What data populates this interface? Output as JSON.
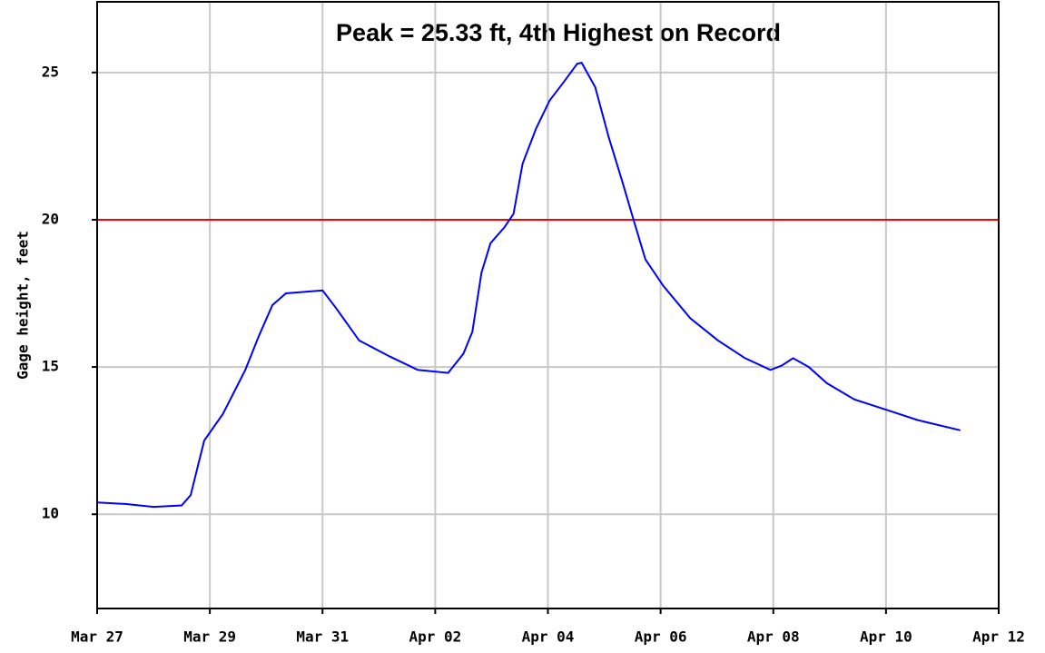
{
  "chart_data": {
    "type": "line",
    "title": "Peak = 25.33 ft, 4th Highest on Record",
    "y_label": "Gage height, feet",
    "x": [
      0,
      0.5,
      1.0,
      1.5,
      1.66,
      1.9,
      2.23,
      2.63,
      2.87,
      3.11,
      3.35,
      4.0,
      4.24,
      4.65,
      5.2,
      5.69,
      6.23,
      6.5,
      6.66,
      6.82,
      6.98,
      7.23,
      7.39,
      7.55,
      7.79,
      8.03,
      8.27,
      8.52,
      8.6,
      8.84,
      9.08,
      9.32,
      9.52,
      9.73,
      10.05,
      10.53,
      11.02,
      11.5,
      11.95,
      12.15,
      12.35,
      12.63,
      12.95,
      13.44,
      14.08,
      14.56,
      15.32
    ],
    "series": [
      {
        "name": "Gage height",
        "color": "#0000ff",
        "values": [
          10.4,
          10.35,
          10.25,
          10.3,
          10.65,
          12.5,
          13.4,
          14.9,
          16.05,
          17.1,
          17.5,
          17.6,
          17.0,
          15.9,
          15.35,
          14.9,
          14.8,
          15.45,
          16.2,
          18.2,
          19.2,
          19.75,
          20.2,
          21.9,
          23.1,
          24.05,
          24.65,
          25.3,
          25.33,
          24.5,
          22.8,
          21.3,
          20.0,
          18.65,
          17.75,
          16.65,
          15.9,
          15.3,
          14.9,
          15.05,
          15.3,
          15.0,
          14.45,
          13.9,
          13.5,
          13.2,
          12.85
        ]
      }
    ],
    "threshold": {
      "value": 20,
      "color": "#ff0000"
    },
    "xlim": [
      0,
      16
    ],
    "xticks": [
      {
        "value": 0,
        "label": "Mar 27"
      },
      {
        "value": 2,
        "label": "Mar 29"
      },
      {
        "value": 4,
        "label": "Mar 31"
      },
      {
        "value": 6,
        "label": "Apr 02"
      },
      {
        "value": 8,
        "label": "Apr 04"
      },
      {
        "value": 10,
        "label": "Apr 06"
      },
      {
        "value": 12,
        "label": "Apr 08"
      },
      {
        "value": 14,
        "label": "Apr 10"
      },
      {
        "value": 16,
        "label": "Apr 12"
      }
    ],
    "ylim": [
      6.8,
      27.4
    ],
    "yticks": [
      10,
      15,
      20,
      25
    ],
    "grid": true
  }
}
